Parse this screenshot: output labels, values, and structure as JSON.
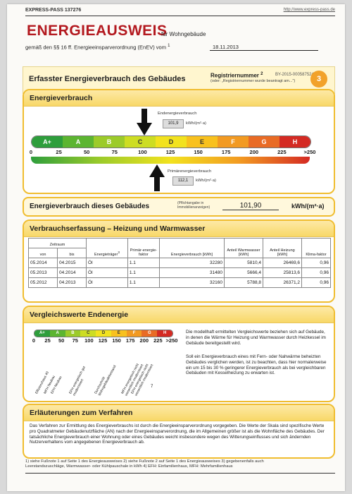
{
  "header": {
    "id_label": "EXPRESS-PASS 137276",
    "url": "http://www.express-pass.de",
    "title": "ENERGIEAUSWEIS",
    "subtitle": "für Wohngebäude",
    "gemaess": "gemäß den §§ 16 ff. Energieeinsparverordnung (EnEV) vom",
    "gemaess_sup": "1",
    "date": "18.11.2013"
  },
  "panel": {
    "heading": "Erfasster Energieverbrauch des Gebäudes",
    "reg_label": "Registriernummer",
    "reg_sup": "2",
    "reg_number": "BY-2015-000587524",
    "reg_note": "(oder: „Registriernummer wurde beantragt am...\")",
    "page_number": "3"
  },
  "energy": {
    "heading": "Energieverbrauch",
    "endenergie_label": "Endenergieverbrauch",
    "endenergie_value": "101,9",
    "unit": "kWh/(m²·a)",
    "primaer_label": "Primärenergieverbrauch",
    "primaer_value": "112,1",
    "classes": [
      "A+",
      "A",
      "B",
      "C",
      "D",
      "E",
      "F",
      "G",
      "H"
    ],
    "scale": [
      "0",
      "25",
      "50",
      "75",
      "100",
      "125",
      "150",
      "175",
      "200",
      "225",
      ">250"
    ],
    "colors": [
      "#2e9e3c",
      "#5cb531",
      "#9ccb2a",
      "#cddd23",
      "#f2e21f",
      "#f8c11e",
      "#f29a22",
      "#e96b25",
      "#d42a23"
    ]
  },
  "building": {
    "label": "Energieverbrauch dieses Gebäudes",
    "note": "(Pflichtangabe in Immobilienanzeigen)",
    "value": "101,90",
    "unit": "kWh/(m²·a)"
  },
  "verbrauch": {
    "heading": "Verbrauchserfassung – Heizung und Warmwasser",
    "col_zeitraum": "Zeitraum",
    "col_von": "von",
    "col_bis": "bis",
    "col_traeger": "Energieträger",
    "col_traeger_sup": "3",
    "col_primaer": "Primär-energie-faktor",
    "col_verbrauch": "Energieverbrauch [kWh]",
    "col_warmwasser": "Anteil Warmwasser [kWh]",
    "col_heizung": "Anteil Heizung [kWh]",
    "col_klima": "Klima-faktor",
    "rows": [
      [
        "05.2014",
        "04.2015",
        "Öl",
        "1.1",
        "32280",
        "5810,4",
        "26469,6",
        "0,96"
      ],
      [
        "05.2013",
        "04.2014",
        "Öl",
        "1.1",
        "31480",
        "5666,4",
        "25813,6",
        "0,96"
      ],
      [
        "05.2012",
        "04.2013",
        "Öl",
        "1.1",
        "32160",
        "5788,8",
        "26371,2",
        "0,96"
      ]
    ]
  },
  "vergleich": {
    "heading": "Vergleichswerte Endenergie",
    "labels": [
      "Effizienzhaus 40",
      "MFH Neubau",
      "EFH Neubau",
      "EFH energetisch gut modernisiert",
      "Durchschnitt Wohngebäudebestand",
      "MFH energetisch nicht wesentlich modernisiert",
      "EFH energetisch nicht wesentlich modernisiert"
    ],
    "footnote_mark": "7",
    "text1": "Die modellhaft ermittelten Vergleichswerte beziehen sich auf Gebäude, in denen die Wärme für Heizung und Warmwasser durch Heizkessel im Gebäude bereitgestellt wird.",
    "text2": "Soll ein Energieverbrauch eines mit Fern- oder Nahwärme beheizten Gebäudes verglichen werden, ist zu beachten, dass hier normalerweise ein um 15 bis 30 % geringerer Energieverbrauch als bei vergleichbaren Gebäuden mit Kesselheizung zu erwarten ist."
  },
  "erlaeuterung": {
    "heading": "Erläuterungen zum Verfahren",
    "text": "Das Verfahren zur Ermittlung des Energieverbrauchs ist durch die Energieeinsparverordnung vorgegeben. Die Werte der Skala sind spezifische Werte pro Quadratmeter Gebäudenutzfläche (AN) nach der Energieeinsparverordnung, die im Allgemeinen größer ist als die Wohnfläche des Gebäudes. Der tatsächliche Energieverbrauch einer Wohnung oder eines Gebäudes weicht insbesondere wegen des Witterungseinflusses und sich ändernden Nutzerverhaltens vom angegebenen Energieverbrauch ab."
  },
  "footnotes": {
    "line1": "1) siehe Fußnote 1 auf Seite 1 des Energieausweises     2) siehe Fußnote 2 auf Seite 1 des Energieausweises     3) gegebenenfalls auch",
    "line2": "Leerstandszuschläge, Warmwasser- oder Kühlpauschale in kWh   4) EFH: Einfamilienhaus, MFH: Mehrfamilienhaus"
  }
}
